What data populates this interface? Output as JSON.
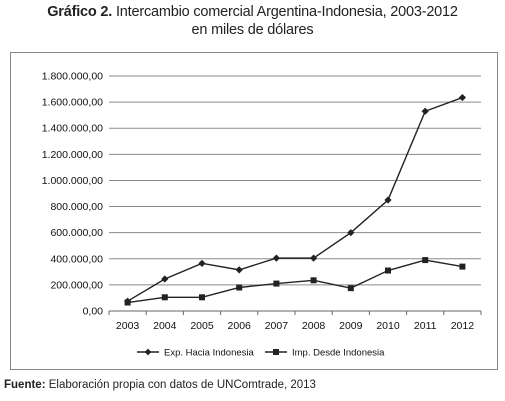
{
  "header": {
    "title_label": "Gráfico 2.",
    "title_text": "Intercambio comercial Argentina-Indonesia, 2003-2012",
    "subtitle": "en miles de dólares"
  },
  "footer": {
    "source_label": "Fuente:",
    "source_text": "Elaboración propia con datos de UNComtrade, 2013"
  },
  "chart_data": {
    "type": "line",
    "categories": [
      "2003",
      "2004",
      "2005",
      "2006",
      "2007",
      "2008",
      "2009",
      "2010",
      "2011",
      "2012"
    ],
    "y_tick_labels": [
      "0,00",
      "200.000,00",
      "400.000,00",
      "600.000,00",
      "800.000,00",
      "1.000.000,00",
      "1.200.000,00",
      "1.400.000,00",
      "1.600.000,00",
      "1.800.000,00"
    ],
    "ylim": [
      0,
      1800000
    ],
    "grid": true,
    "legend_position": "bottom",
    "series": [
      {
        "name": "Exp. Hacia Indonesia",
        "marker": "diamond",
        "color": "#222222",
        "values": [
          75000,
          245000,
          365000,
          315000,
          405000,
          405000,
          600000,
          850000,
          1530000,
          1635000
        ]
      },
      {
        "name": "Imp. Desde Indonesia",
        "marker": "square",
        "color": "#222222",
        "values": [
          65000,
          105000,
          105000,
          180000,
          210000,
          235000,
          175000,
          310000,
          390000,
          340000
        ]
      }
    ]
  }
}
